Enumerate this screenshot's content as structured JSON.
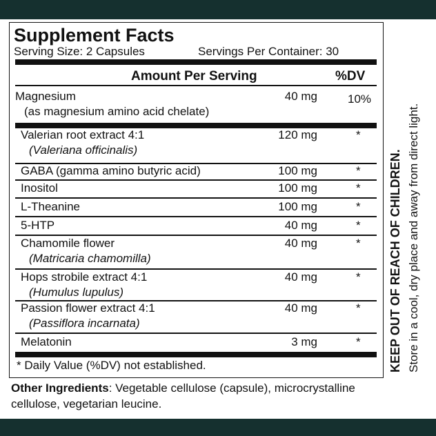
{
  "facts": {
    "title": "Supplement Facts",
    "serving_size": "Serving Size: 2 Capsules",
    "servings_per_container": "Servings Per Container: 30",
    "header": {
      "amount": "Amount Per Serving",
      "dv": "%DV"
    },
    "rows": [
      {
        "name": "Magnesium",
        "sub": "(as magnesium amino acid chelate)",
        "amount": "40 mg",
        "dv": "10%"
      },
      {
        "name": "Valerian root extract 4:1",
        "sub": "(Valeriana officinalis)",
        "amount": "120 mg",
        "dv": "*"
      },
      {
        "name": "GABA (gamma amino butyric acid)",
        "amount": "100 mg",
        "dv": "*"
      },
      {
        "name": "Inositol",
        "amount": "100 mg",
        "dv": "*"
      },
      {
        "name": "L-Theanine",
        "amount": "100 mg",
        "dv": "*"
      },
      {
        "name": "5-HTP",
        "amount": "40 mg",
        "dv": "*"
      },
      {
        "name": "Chamomile flower",
        "sub": "(Matricaria chamomilla)",
        "amount": "40 mg",
        "dv": "*"
      },
      {
        "name": "Hops strobile extract 4:1",
        "sub": "(Humulus lupulus)",
        "amount": "40 mg",
        "dv": "*"
      },
      {
        "name": "Passion flower extract 4:1",
        "sub": "(Passiflora incarnata)",
        "amount": "40 mg",
        "dv": "*"
      },
      {
        "name": "Melatonin",
        "amount": "3 mg",
        "dv": "*"
      }
    ],
    "footnote": "* Daily Value (%DV) not established."
  },
  "other_ingredients": {
    "label": "Other Ingredients",
    "text": ": Vegetable cellulose (capsule), microcrystalline cellulose, vegetarian leucine."
  },
  "side": {
    "warning": "KEEP OUT OF REACH OF CHILDREN.",
    "storage": "Store in a cool, dry place and away from direct light."
  }
}
